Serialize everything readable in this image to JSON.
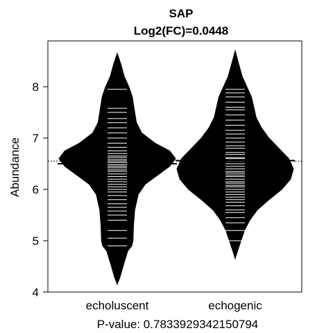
{
  "chart_data": {
    "type": "beanplot",
    "title_line1": "SAP",
    "title_line2": "Log2(FC)=0.0448",
    "ylabel": "Abundance",
    "xlabel": "P-value: 0.7833929342150794",
    "ylim": [
      4,
      8.9
    ],
    "yticks": [
      "4",
      "5",
      "6",
      "7",
      "8"
    ],
    "overall_mean": 6.55,
    "categories": [
      "echoluscent",
      "echogenic"
    ],
    "series": [
      {
        "name": "echoluscent",
        "mean": 6.5,
        "density": [
          [
            4.15,
            0.0
          ],
          [
            4.3,
            0.05
          ],
          [
            4.5,
            0.1
          ],
          [
            4.8,
            0.18
          ],
          [
            4.9,
            0.25
          ],
          [
            5.0,
            0.27
          ],
          [
            5.3,
            0.28
          ],
          [
            5.6,
            0.3
          ],
          [
            5.9,
            0.36
          ],
          [
            6.1,
            0.48
          ],
          [
            6.3,
            0.72
          ],
          [
            6.45,
            0.9
          ],
          [
            6.6,
            1.0
          ],
          [
            6.75,
            0.9
          ],
          [
            6.9,
            0.65
          ],
          [
            7.1,
            0.42
          ],
          [
            7.3,
            0.33
          ],
          [
            7.5,
            0.3
          ],
          [
            7.8,
            0.26
          ],
          [
            8.0,
            0.2
          ],
          [
            8.2,
            0.12
          ],
          [
            8.45,
            0.06
          ],
          [
            8.65,
            0.0
          ]
        ],
        "observations": [
          4.9,
          5.05,
          5.2,
          5.4,
          5.5,
          5.58,
          5.65,
          5.72,
          5.8,
          5.88,
          5.95,
          6.0,
          6.05,
          6.1,
          6.15,
          6.2,
          6.25,
          6.3,
          6.35,
          6.38,
          6.42,
          6.45,
          6.48,
          6.52,
          6.55,
          6.58,
          6.62,
          6.65,
          6.7,
          6.75,
          6.82,
          6.9,
          7.0,
          7.1,
          7.2,
          7.3,
          7.38,
          7.5,
          7.58,
          7.95
        ]
      },
      {
        "name": "echogenic",
        "mean": 6.56,
        "density": [
          [
            4.65,
            0.0
          ],
          [
            4.8,
            0.04
          ],
          [
            5.0,
            0.1
          ],
          [
            5.2,
            0.16
          ],
          [
            5.4,
            0.25
          ],
          [
            5.6,
            0.38
          ],
          [
            5.8,
            0.58
          ],
          [
            6.0,
            0.8
          ],
          [
            6.2,
            0.95
          ],
          [
            6.4,
            1.0
          ],
          [
            6.6,
            0.92
          ],
          [
            6.8,
            0.75
          ],
          [
            7.0,
            0.58
          ],
          [
            7.2,
            0.45
          ],
          [
            7.4,
            0.36
          ],
          [
            7.6,
            0.32
          ],
          [
            7.8,
            0.28
          ],
          [
            8.0,
            0.2
          ],
          [
            8.2,
            0.12
          ],
          [
            8.45,
            0.06
          ],
          [
            8.7,
            0.0
          ]
        ],
        "observations": [
          5.0,
          5.2,
          5.35,
          5.45,
          5.55,
          5.6,
          5.68,
          5.75,
          5.8,
          5.85,
          5.9,
          5.95,
          6.0,
          6.05,
          6.08,
          6.12,
          6.15,
          6.2,
          6.25,
          6.28,
          6.32,
          6.35,
          6.4,
          6.45,
          6.5,
          6.55,
          6.6,
          6.62,
          6.68,
          6.72,
          6.8,
          6.85,
          6.92,
          7.0,
          7.08,
          7.15,
          7.25,
          7.35,
          7.45,
          7.55,
          7.6,
          7.7,
          7.8,
          7.88,
          7.95
        ]
      }
    ]
  }
}
